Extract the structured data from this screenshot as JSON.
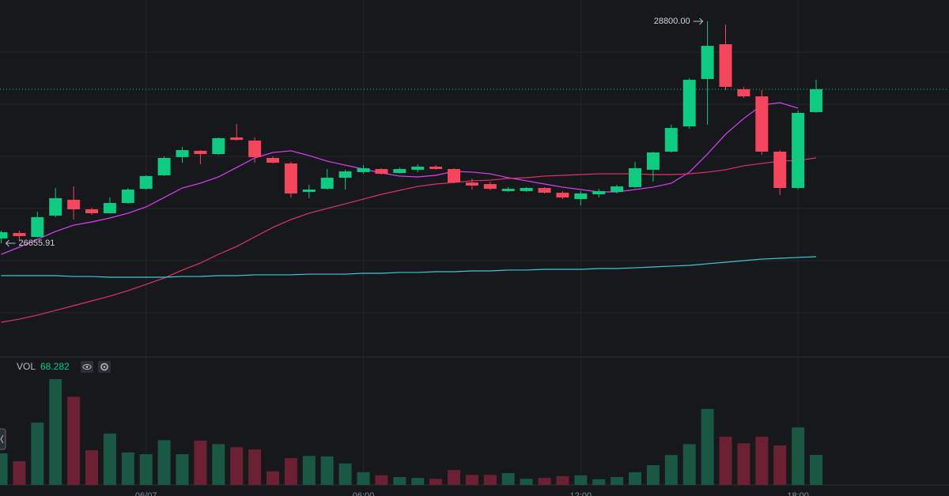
{
  "chart_data": {
    "type": "candlestick",
    "categories": [
      null,
      null,
      null,
      null,
      null,
      null,
      null,
      null,
      "06/07",
      null,
      null,
      null,
      null,
      null,
      null,
      null,
      null,
      null,
      null,
      null,
      "06:00",
      null,
      null,
      null,
      null,
      null,
      null,
      null,
      null,
      null,
      null,
      null,
      "12:00",
      null,
      null,
      null,
      null,
      null,
      null,
      null,
      null,
      null,
      null,
      null,
      "18:00",
      null
    ],
    "open": [
      26702,
      26755,
      26717,
      26923,
      27076,
      26984,
      26946,
      27045,
      27182,
      27312,
      27488,
      27549,
      27518,
      27678,
      27648,
      27480,
      27427,
      27152,
      27182,
      27289,
      27343,
      27373,
      27335,
      27366,
      27396,
      27373,
      27243,
      27228,
      27160,
      27160,
      27190,
      27144,
      27083,
      27129,
      27152,
      27198,
      27366,
      27541,
      27785,
      28243,
      28579,
      28144,
      28075,
      27541,
      27190,
      27923
    ],
    "high": [
      26778,
      26778,
      26961,
      27190,
      27205,
      26999,
      27098,
      27190,
      27312,
      27495,
      27587,
      27556,
      27678,
      27808,
      27678,
      27495,
      27442,
      27221,
      27373,
      27366,
      27411,
      27381,
      27388,
      27419,
      27411,
      27381,
      27282,
      27251,
      27198,
      27198,
      27198,
      27160,
      27160,
      27182,
      27221,
      27442,
      27541,
      27800,
      28251,
      28800,
      28769,
      28167,
      28136,
      27556,
      27938,
      28235
    ],
    "low": [
      26655.91,
      26686,
      26710,
      26908,
      26885,
      26931,
      26940,
      27037,
      27175,
      27305,
      27434,
      27419,
      27510,
      27648,
      27434,
      27427,
      27098,
      27091,
      27175,
      27175,
      27327,
      27320,
      27327,
      27343,
      27366,
      27236,
      27175,
      27167,
      27152,
      27152,
      27137,
      27083,
      27022,
      27098,
      27137,
      27190,
      27251,
      27533,
      27762,
      27800,
      28136,
      28060,
      27511,
      27121,
      27175,
      27915
    ],
    "close": [
      26763,
      26725,
      26908,
      27091,
      26984,
      26946,
      27045,
      27175,
      27305,
      27480,
      27556,
      27518,
      27671,
      27655,
      27488,
      27434,
      27137,
      27175,
      27289,
      27350,
      27381,
      27327,
      27373,
      27396,
      27373,
      27243,
      27213,
      27182,
      27182,
      27190,
      27144,
      27098,
      27137,
      27160,
      27205,
      27381,
      27533,
      27770,
      28235,
      28563,
      28167,
      28075,
      27541,
      27190,
      27915,
      28144
    ],
    "up_color": "#0ecb81",
    "down_color": "#f6465d",
    "volume_label": "VOL",
    "volume": [
      72,
      54,
      142,
      241,
      201,
      79,
      117,
      74,
      70,
      102,
      70,
      101,
      93,
      86,
      81,
      31,
      61,
      66,
      65,
      49,
      29,
      22,
      18,
      16,
      14,
      34,
      23,
      23,
      27,
      14,
      16,
      20,
      22,
      13,
      18,
      29,
      45,
      68,
      93,
      173,
      110,
      95,
      110,
      90,
      131,
      68.282
    ],
    "volume_up_color": "#1a5843",
    "volume_down_color": "#6b2133",
    "moving_averages": [
      {
        "color": "#e040fb",
        "values": [
          26549,
          26618,
          26694,
          26770,
          26831,
          26862,
          26900,
          26946,
          27007,
          27098,
          27190,
          27236,
          27297,
          27388,
          27480,
          27533,
          27549,
          27503,
          27449,
          27411,
          27373,
          27335,
          27305,
          27297,
          27312,
          27350,
          27343,
          27327,
          27289,
          27259,
          27228,
          27198,
          27175,
          27152,
          27152,
          27175,
          27198,
          27236,
          27343,
          27518,
          27709,
          27861,
          27991,
          28014,
          27961,
          null
        ]
      },
      {
        "color": "#e0336b",
        "values": [
          25893,
          25923,
          25962,
          26007,
          26053,
          26099,
          26145,
          26198,
          26259,
          26320,
          26397,
          26465,
          26549,
          26625,
          26717,
          26809,
          26885,
          26946,
          26992,
          27037,
          27083,
          27129,
          27167,
          27205,
          27228,
          27243,
          27259,
          27266,
          27282,
          27289,
          27305,
          27312,
          27320,
          27327,
          27327,
          27327,
          27320,
          27320,
          27327,
          27343,
          27366,
          27404,
          27427,
          27449,
          27457,
          27480
        ]
      },
      {
        "color": "#3cc9d6",
        "values": [
          26343,
          26343,
          26343,
          26343,
          26335,
          26335,
          26328,
          26328,
          26328,
          26328,
          26335,
          26335,
          26343,
          26343,
          26351,
          26351,
          26351,
          26358,
          26358,
          26358,
          26366,
          26366,
          26374,
          26374,
          26381,
          26381,
          26389,
          26389,
          26397,
          26397,
          26404,
          26404,
          26404,
          26412,
          26412,
          26419,
          26427,
          26435,
          26442,
          26458,
          26473,
          26488,
          26503,
          26511,
          26519,
          26526
        ]
      }
    ],
    "annotations": [
      {
        "value": 28800,
        "label": "28800.00"
      },
      {
        "value": 26655.91,
        "label": "26655.91"
      }
    ]
  }
}
